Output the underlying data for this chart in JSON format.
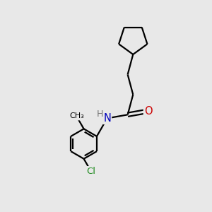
{
  "background_color": "#e8e8e8",
  "bond_color": "#000000",
  "atom_colors": {
    "N": "#0000bb",
    "O": "#cc0000",
    "Cl": "#228B22",
    "C": "#000000",
    "H": "#777777"
  },
  "figsize": [
    3.0,
    3.0
  ],
  "dpi": 100,
  "bond_lw": 1.6,
  "font_size": 9.5
}
